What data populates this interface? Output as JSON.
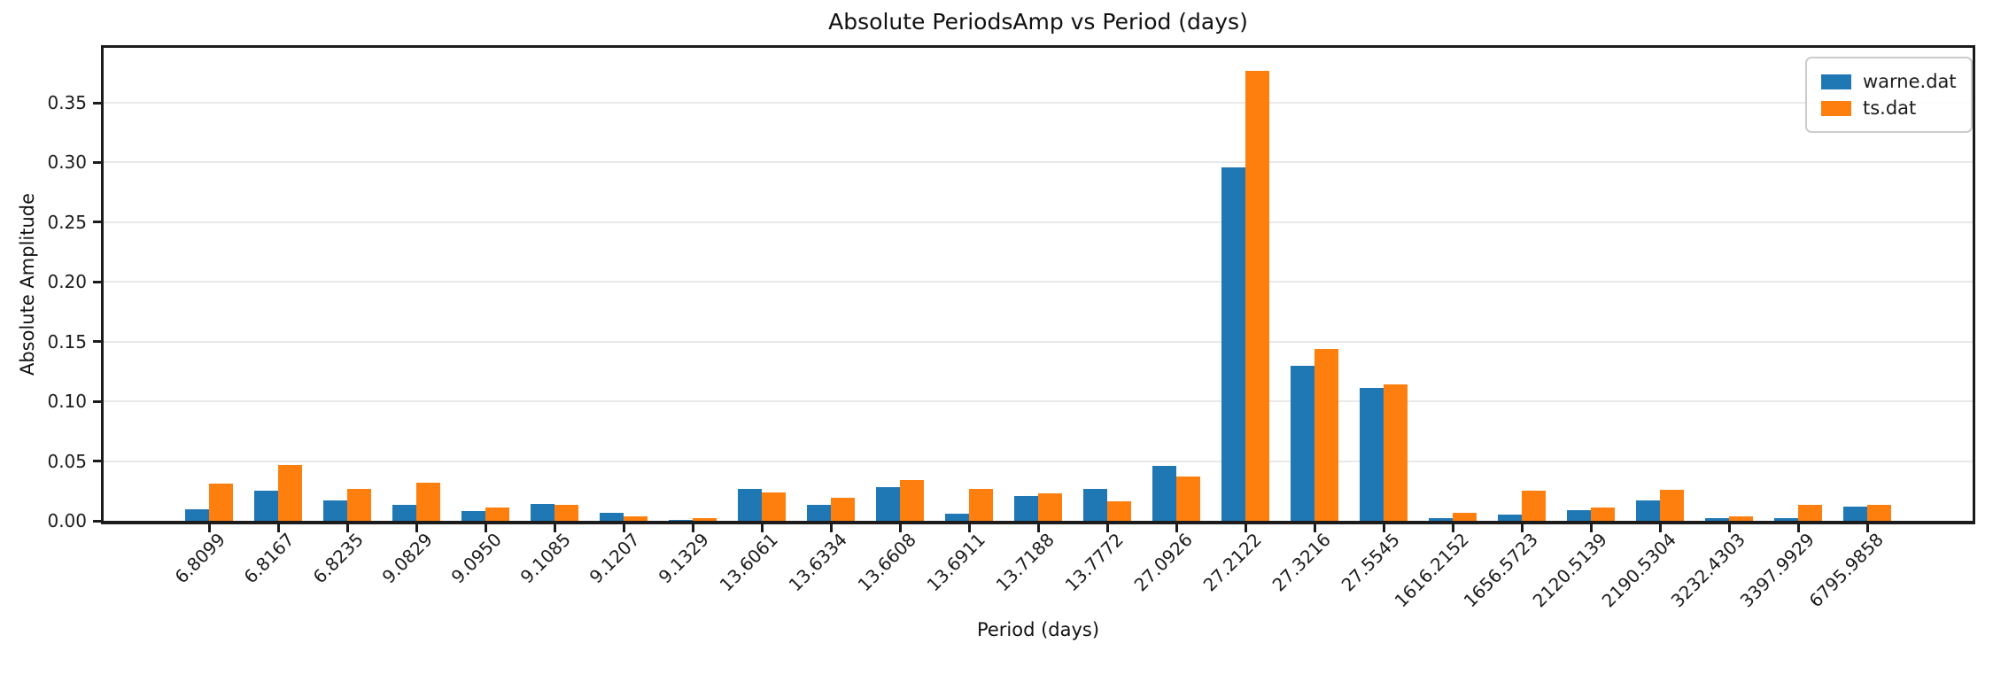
{
  "title": "Absolute PeriodsAmp vs Period (days)",
  "chart_data": {
    "type": "bar",
    "title": "Absolute PeriodsAmp vs Period (days)",
    "xlabel": "Period (days)",
    "ylabel": "Absolute Amplitude",
    "categories": [
      "6.8099",
      "6.8167",
      "6.8235",
      "9.0829",
      "9.0950",
      "9.1085",
      "9.1207",
      "9.1329",
      "13.6061",
      "13.6334",
      "13.6608",
      "13.6911",
      "13.7188",
      "13.7772",
      "27.0926",
      "27.2122",
      "27.3216",
      "27.5545",
      "1616.2152",
      "1656.5723",
      "2120.5139",
      "2190.5304",
      "3232.4303",
      "3397.9929",
      "6795.9858"
    ],
    "series": [
      {
        "name": "warne.dat",
        "color": "#1f77b4",
        "values": [
          0.01,
          0.025,
          0.017,
          0.013,
          0.008,
          0.014,
          0.007,
          0.0005,
          0.027,
          0.013,
          0.028,
          0.006,
          0.021,
          0.027,
          0.046,
          0.296,
          0.13,
          0.111,
          0.002,
          0.005,
          0.009,
          0.017,
          0.002,
          0.002,
          0.012
        ]
      },
      {
        "name": "ts.dat",
        "color": "#ff7f0e",
        "values": [
          0.031,
          0.047,
          0.027,
          0.032,
          0.011,
          0.013,
          0.004,
          0.002,
          0.024,
          0.019,
          0.034,
          0.027,
          0.023,
          0.016,
          0.037,
          0.377,
          0.144,
          0.114,
          0.007,
          0.025,
          0.011,
          0.026,
          0.004,
          0.013,
          0.013
        ]
      }
    ],
    "ylim": [
      0,
      0.396
    ],
    "yticks": [
      0.0,
      0.05,
      0.1,
      0.15,
      0.2,
      0.25,
      0.3,
      0.35
    ],
    "ytick_labels": [
      "0.00",
      "0.05",
      "0.10",
      "0.15",
      "0.20",
      "0.25",
      "0.30",
      "0.35"
    ],
    "grid": true,
    "grid_color": "#e9e9e9",
    "legend_position": "upper right",
    "x_tick_rotation": 45
  }
}
